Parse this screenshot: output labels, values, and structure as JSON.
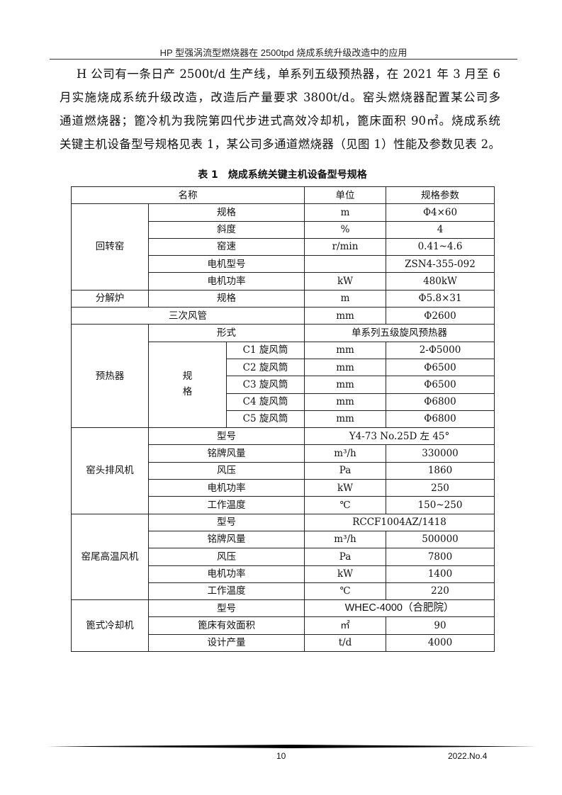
{
  "header": {
    "running_title": "HP 型强涡流型燃烧器在 2500tpd 烧成系统升级改造中的应用"
  },
  "paragraph": {
    "lines": [
      "H 公司有一条日产 2500t/d 生产线，单系列五级预热器，在 2021 年 3 月至 6",
      "月实施烧成系统升级改造，改造后产量要求 3800t/d。窑头燃烧器配置某公司多",
      "通道燃烧器；篦冷机为我院第四代步进式高效冷却机，篦床面积 90㎡。烧成系统",
      "关键主机设备型号规格见表 1，某公司多通道燃烧器（见图 1）性能及参数见表 2。"
    ]
  },
  "table": {
    "caption": "表 1　烧成系统关键主机设备型号规格",
    "header": {
      "name": "名称",
      "unit": "单位",
      "spec": "规格参数"
    },
    "kiln": {
      "label": "回转窑",
      "rows": [
        {
          "item": "规格",
          "unit": "m",
          "value": "Φ4×60"
        },
        {
          "item": "斜度",
          "unit": "%",
          "value": "4"
        },
        {
          "item": "窑速",
          "unit": "r/min",
          "value": "0.41~4.6"
        },
        {
          "item": "电机型号",
          "unit": "",
          "value": "ZSN4-355-092"
        },
        {
          "item": "电机功率",
          "unit": "kW",
          "value": "480kW"
        }
      ]
    },
    "calciner": {
      "label": "分解炉",
      "item": "规格",
      "unit": "m",
      "value": "Φ5.8×31"
    },
    "tertiary_duct": {
      "label": "三次风管",
      "unit": "mm",
      "value": "Φ2600"
    },
    "preheater": {
      "label": "预热器",
      "form_item": "形式",
      "form_value": "单系列五级旋风预热器",
      "spec_label": "规\n格",
      "rows": [
        {
          "item": "C1 旋风筒",
          "unit": "mm",
          "value": "2-Φ5000"
        },
        {
          "item": "C2 旋风筒",
          "unit": "mm",
          "value": "Φ6500"
        },
        {
          "item": "C3 旋风筒",
          "unit": "mm",
          "value": "Φ6500"
        },
        {
          "item": "C4 旋风筒",
          "unit": "mm",
          "value": "Φ6800"
        },
        {
          "item": "C5 旋风筒",
          "unit": "mm",
          "value": "Φ6800"
        }
      ]
    },
    "head_fan": {
      "label": "窑头排风机",
      "model_item": "型号",
      "model_value": "Y4-73 No.25D 左 45°",
      "rows": [
        {
          "item": "铭牌风量",
          "unit": "m³/h",
          "value": "330000"
        },
        {
          "item": "风压",
          "unit": "Pa",
          "value": "1860"
        },
        {
          "item": "电机功率",
          "unit": "kW",
          "value": "250"
        },
        {
          "item": "工作温度",
          "unit": "℃",
          "value": "150~250"
        }
      ]
    },
    "tail_fan": {
      "label": "窑尾高温风机",
      "model_item": "型号",
      "model_value": "RCCF1004AZ/1418",
      "rows": [
        {
          "item": "铭牌风量",
          "unit": "m³/h",
          "value": "500000"
        },
        {
          "item": "风压",
          "unit": "Pa",
          "value": "7800"
        },
        {
          "item": "电机功率",
          "unit": "kW",
          "value": "1400"
        },
        {
          "item": "工作温度",
          "unit": "℃",
          "value": "220"
        }
      ]
    },
    "cooler": {
      "label": "篦式冷却机",
      "model_item": "型号",
      "model_value": "WHEC-4000（合肥院）",
      "rows": [
        {
          "item": "篦床有效面积",
          "unit": "㎡",
          "value": "90"
        },
        {
          "item": "设计产量",
          "unit": "t/d",
          "value": "4000"
        }
      ]
    }
  },
  "footer": {
    "page_number": "10",
    "issue": "2022.No.4"
  }
}
